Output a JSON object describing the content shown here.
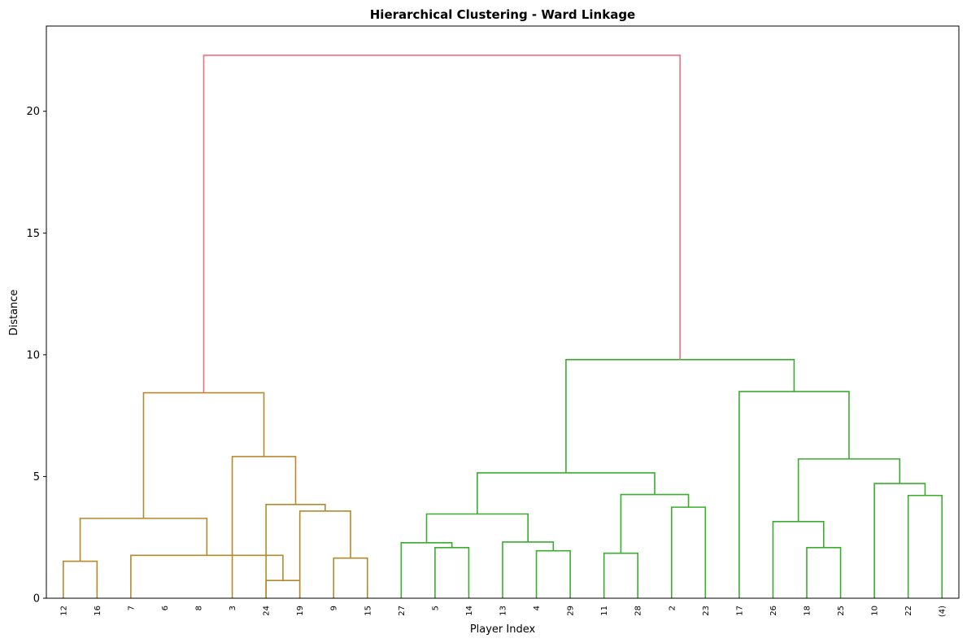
{
  "chart_data": {
    "type": "dendrogram",
    "title": "Hierarchical Clustering - Ward Linkage",
    "xlabel": "Player Index",
    "ylabel": "Distance",
    "ylim": [
      0,
      23.5
    ],
    "yticks": [
      0,
      5,
      10,
      15,
      20
    ],
    "grid": false,
    "leaves": [
      "12",
      "16",
      "7",
      "6",
      "8",
      "3",
      "24",
      "19",
      "9",
      "15",
      "27",
      "5",
      "14",
      "13",
      "4",
      "29",
      "11",
      "28",
      "2",
      "23",
      "17",
      "26",
      "18",
      "25",
      "10",
      "22",
      "(4)"
    ],
    "colors": {
      "root": "#f0707e",
      "cluster_1": "#b5892c",
      "cluster_2": "#3aad2e"
    },
    "merges": [
      {
        "left": 6,
        "right": 7,
        "height": 0.73,
        "color": "cluster_1"
      },
      {
        "left": 0,
        "right": 1,
        "height": 1.52,
        "color": "cluster_1"
      },
      {
        "left": 8,
        "right": 9,
        "height": 1.65,
        "color": "cluster_1"
      },
      {
        "left": 2,
        "right": 27,
        "height": 1.76,
        "color": "cluster_1"
      },
      {
        "left": 16,
        "right": 17,
        "height": 1.85,
        "color": "cluster_2"
      },
      {
        "left": 14,
        "right": 15,
        "height": 1.95,
        "color": "cluster_2"
      },
      {
        "left": 11,
        "right": 12,
        "height": 2.08,
        "color": "cluster_2"
      },
      {
        "left": 22,
        "right": 23,
        "height": 2.08,
        "color": "cluster_2"
      },
      {
        "left": 10,
        "right": 33,
        "height": 2.28,
        "color": "cluster_2"
      },
      {
        "left": 13,
        "right": 32,
        "height": 2.31,
        "color": "cluster_2"
      },
      {
        "left": 21,
        "right": 34,
        "height": 3.15,
        "color": "cluster_2"
      },
      {
        "left": 28,
        "right": 30,
        "height": 3.28,
        "color": "cluster_1"
      },
      {
        "left": 35,
        "right": 36,
        "height": 3.46,
        "color": "cluster_2"
      },
      {
        "left": 7,
        "right": 29,
        "height": 3.58,
        "color": "cluster_1"
      },
      {
        "left": 18,
        "right": 19,
        "height": 3.74,
        "color": "cluster_2"
      },
      {
        "left": 6,
        "right": 40,
        "height": 3.85,
        "color": "cluster_1"
      },
      {
        "left": 25,
        "right": 26,
        "height": 4.22,
        "color": "cluster_2"
      },
      {
        "left": 31,
        "right": 41,
        "height": 4.26,
        "color": "cluster_2"
      },
      {
        "left": 24,
        "right": 43,
        "height": 4.71,
        "color": "cluster_2"
      },
      {
        "left": 39,
        "right": 44,
        "height": 5.15,
        "color": "cluster_2"
      },
      {
        "left": 5,
        "right": 42,
        "height": 5.82,
        "color": "cluster_1"
      },
      {
        "left": 37,
        "right": 45,
        "height": 5.72,
        "color": "cluster_2"
      },
      {
        "left": 20,
        "right": 48,
        "height": 8.49,
        "color": "cluster_2"
      },
      {
        "left": 38,
        "right": 47,
        "height": 8.44,
        "color": "cluster_1"
      },
      {
        "left": 46,
        "right": 49,
        "height": 9.8,
        "color": "cluster_2"
      },
      {
        "left": 50,
        "right": 51,
        "height": 22.3,
        "color": "root"
      }
    ]
  }
}
